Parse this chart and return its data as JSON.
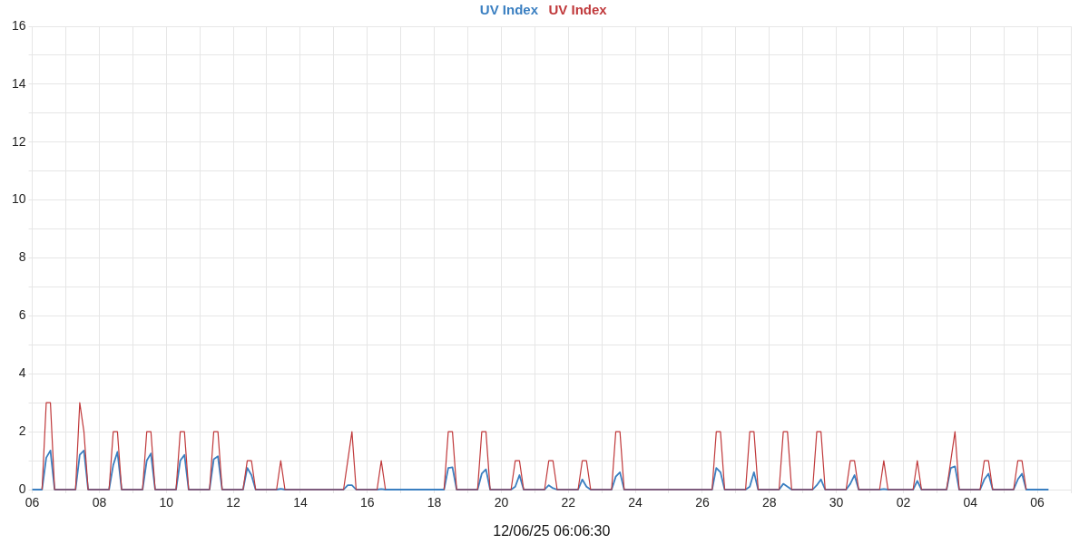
{
  "chart_data": {
    "type": "line",
    "xlabel": "12/06/25 06:06:30",
    "x": [
      "--11-06T00:00",
      "--11-06T07:00",
      "--11-06T10:00",
      "--11-06T13:00",
      "--11-06T16:00",
      "--11-07T07:00",
      "--11-07T10:00",
      "--11-07T13:00",
      "--11-07T16:00",
      "--11-08T07:00",
      "--11-08T10:00",
      "--11-08T13:00",
      "--11-08T16:00",
      "--11-09T07:00",
      "--11-09T10:00",
      "--11-09T13:00",
      "--11-09T16:00",
      "--11-10T07:00",
      "--11-10T10:00",
      "--11-10T13:00",
      "--11-10T16:00",
      "--11-11T07:00",
      "--11-11T10:00",
      "--11-11T13:00",
      "--11-11T16:00",
      "--11-12T07:00",
      "--11-12T10:00",
      "--11-12T13:00",
      "--11-12T16:00",
      "--11-13T07:00",
      "--11-13T10:00",
      "--11-13T13:00",
      "--11-13T16:00",
      "--11-15T07:00",
      "--11-15T10:00",
      "--11-15T13:00",
      "--11-15T16:00",
      "--11-16T07:00",
      "--11-16T10:00",
      "--11-16T13:00",
      "--11-16T16:00",
      "--11-18T07:00",
      "--11-18T10:00",
      "--11-18T13:00",
      "--11-18T16:00",
      "--11-19T07:00",
      "--11-19T10:00",
      "--11-19T13:00",
      "--11-19T16:00",
      "--11-20T07:00",
      "--11-20T10:00",
      "--11-20T13:00",
      "--11-20T16:00",
      "--11-21T07:00",
      "--11-21T10:00",
      "--11-21T13:00",
      "--11-21T16:00",
      "--11-22T07:00",
      "--11-22T10:00",
      "--11-22T13:00",
      "--11-22T16:00",
      "--11-23T07:00",
      "--11-23T10:00",
      "--11-23T13:00",
      "--11-23T16:00",
      "--11-26T07:00",
      "--11-26T10:00",
      "--11-26T13:00",
      "--11-26T16:00",
      "--11-27T07:00",
      "--11-27T10:00",
      "--11-27T13:00",
      "--11-27T16:00",
      "--11-28T07:00",
      "--11-28T10:00",
      "--11-28T13:00",
      "--11-28T16:00",
      "--11-29T07:00",
      "--11-29T10:00",
      "--11-29T13:00",
      "--11-29T16:00",
      "--11-30T07:00",
      "--11-30T10:00",
      "--11-30T13:00",
      "--11-30T16:00",
      "--12-01T07:00",
      "--12-01T10:00",
      "--12-01T13:00",
      "--12-01T16:00",
      "--12-02T07:00",
      "--12-02T10:00",
      "--12-02T13:00",
      "--12-02T16:00",
      "--12-03T07:00",
      "--12-03T10:00",
      "--12-03T13:00",
      "--12-03T16:00",
      "--12-04T07:00",
      "--12-04T10:00",
      "--12-04T13:00",
      "--12-04T16:00",
      "--12-05T07:00",
      "--12-05T10:00",
      "--12-05T13:00",
      "--12-05T16:00",
      "--12-06T08:00"
    ],
    "series": [
      {
        "name": "UV Index",
        "color": "#3a7fc1",
        "values": [
          0,
          0,
          1.1,
          1.35,
          0,
          0,
          1.2,
          1.35,
          0,
          0,
          0.85,
          1.3,
          0,
          0,
          1.0,
          1.25,
          0,
          0,
          1.0,
          1.2,
          0,
          0,
          1.05,
          1.15,
          0,
          0,
          0.75,
          0.5,
          0,
          0,
          0.03,
          0,
          0,
          0,
          0.15,
          0.15,
          0,
          0,
          0.02,
          0,
          0,
          0,
          0.75,
          0.77,
          0,
          0,
          0.55,
          0.7,
          0,
          0,
          0.1,
          0.5,
          0,
          0,
          0.15,
          0.05,
          0,
          0,
          0.35,
          0.1,
          0,
          0,
          0.45,
          0.6,
          0,
          0,
          0.75,
          0.6,
          0,
          0,
          0.1,
          0.6,
          0,
          0,
          0.2,
          0.1,
          0,
          0,
          0.15,
          0.35,
          0,
          0,
          0.2,
          0.5,
          0,
          0,
          0.02,
          0,
          0,
          0,
          0.3,
          0,
          0,
          0,
          0.75,
          0.8,
          0,
          0,
          0.35,
          0.55,
          0,
          0,
          0.35,
          0.55,
          0,
          0
        ]
      },
      {
        "name": "UV Index",
        "color": "#c0393b",
        "values": [
          null,
          0,
          3,
          3,
          0,
          0,
          3,
          2,
          0,
          0,
          2,
          2,
          0,
          0,
          2,
          2,
          0,
          0,
          2,
          2,
          0,
          0,
          2,
          2,
          0,
          0,
          1,
          1,
          0,
          0,
          1,
          0,
          0,
          0,
          1,
          2,
          0,
          0,
          1,
          0,
          null,
          0,
          2,
          2,
          0,
          0,
          2,
          2,
          0,
          0,
          1,
          1,
          0,
          0,
          1,
          1,
          0,
          0,
          1,
          1,
          0,
          0,
          2,
          2,
          0,
          0,
          2,
          2,
          0,
          0,
          2,
          2,
          0,
          0,
          2,
          2,
          0,
          0,
          2,
          2,
          0,
          0,
          1,
          1,
          0,
          0,
          1,
          0,
          0,
          0,
          1,
          0,
          0,
          0,
          1,
          2,
          0,
          0,
          1,
          1,
          0,
          0,
          1,
          1,
          0,
          null
        ]
      }
    ],
    "xlim": [
      "--11-06T00:00",
      "--12-07T00:00"
    ],
    "xticks": [
      {
        "value": "--11-06",
        "label": "06"
      },
      {
        "value": "--11-07",
        "label": null
      },
      {
        "value": "--11-08",
        "label": "08"
      },
      {
        "value": "--11-09",
        "label": null
      },
      {
        "value": "--11-10",
        "label": "10"
      },
      {
        "value": "--11-11",
        "label": null
      },
      {
        "value": "--11-12",
        "label": "12"
      },
      {
        "value": "--11-13",
        "label": null
      },
      {
        "value": "--11-14",
        "label": "14"
      },
      {
        "value": "--11-15",
        "label": null
      },
      {
        "value": "--11-16",
        "label": "16"
      },
      {
        "value": "--11-17",
        "label": null
      },
      {
        "value": "--11-18",
        "label": "18"
      },
      {
        "value": "--11-19",
        "label": null
      },
      {
        "value": "--11-20",
        "label": "20"
      },
      {
        "value": "--11-21",
        "label": null
      },
      {
        "value": "--11-22",
        "label": "22"
      },
      {
        "value": "--11-23",
        "label": null
      },
      {
        "value": "--11-24",
        "label": "24"
      },
      {
        "value": "--11-25",
        "label": null
      },
      {
        "value": "--11-26",
        "label": "26"
      },
      {
        "value": "--11-27",
        "label": null
      },
      {
        "value": "--11-28",
        "label": "28"
      },
      {
        "value": "--11-29",
        "label": null
      },
      {
        "value": "--11-30",
        "label": "30"
      },
      {
        "value": "--12-01",
        "label": null
      },
      {
        "value": "--12-02",
        "label": "02"
      },
      {
        "value": "--12-03",
        "label": null
      },
      {
        "value": "--12-04",
        "label": "04"
      },
      {
        "value": "--12-05",
        "label": null
      },
      {
        "value": "--12-06",
        "label": "06"
      },
      {
        "value": "--12-07",
        "label": null
      }
    ],
    "ylim": [
      0,
      16
    ],
    "yticks": [
      0,
      {
        "value": 1,
        "label": null
      },
      2,
      {
        "value": 3,
        "label": null
      },
      4,
      {
        "value": 5,
        "label": null
      },
      6,
      {
        "value": 7,
        "label": null
      },
      8,
      {
        "value": 9,
        "label": null
      },
      10,
      {
        "value": 11,
        "label": null
      },
      12,
      {
        "value": 13,
        "label": null
      },
      14,
      {
        "value": 15,
        "label": null
      },
      16
    ],
    "grid": true,
    "legend": "top",
    "marker": "none",
    "line_style": "solid"
  }
}
